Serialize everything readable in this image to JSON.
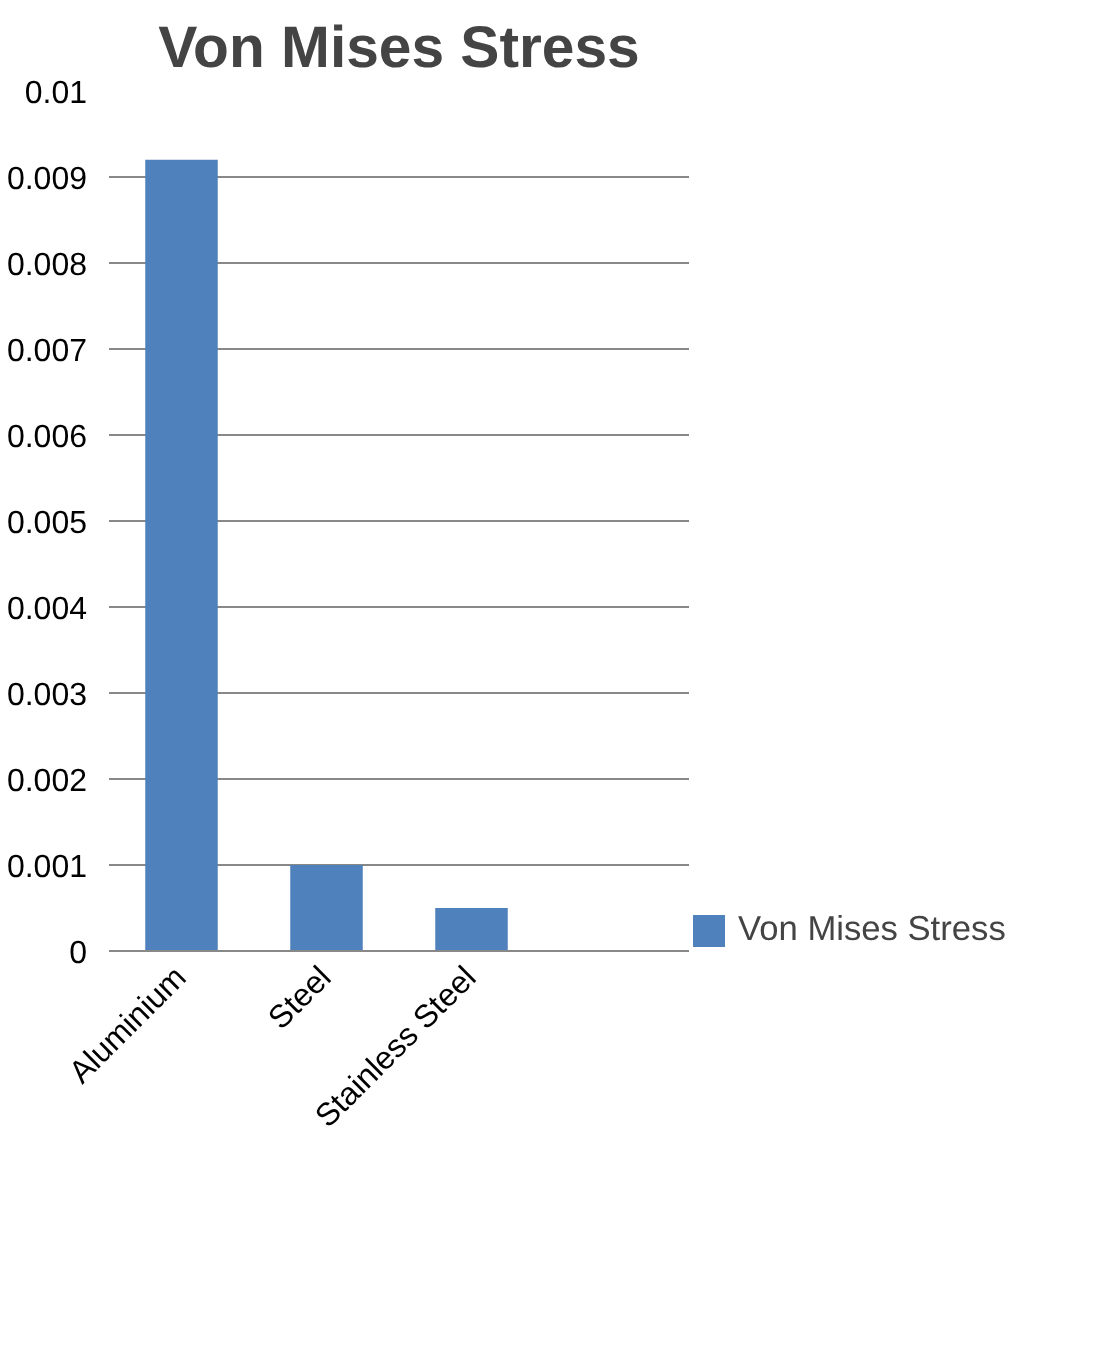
{
  "chart_data": {
    "type": "bar",
    "title": "Von Mises Stress",
    "categories": [
      "Aluminium",
      "Steel",
      "Stainless Steel",
      null
    ],
    "series": [
      {
        "name": "Von Mises Stress",
        "color": "#4f81bd",
        "values": [
          0.0092,
          0.001,
          0.0005,
          null
        ]
      }
    ],
    "ylim": [
      0,
      0.01
    ],
    "yticks": [
      0,
      0.001,
      0.002,
      0.003,
      0.004,
      0.005,
      0.006,
      0.007,
      0.008,
      0.009,
      0.01
    ],
    "grid": "y",
    "legend": "bottom right"
  }
}
